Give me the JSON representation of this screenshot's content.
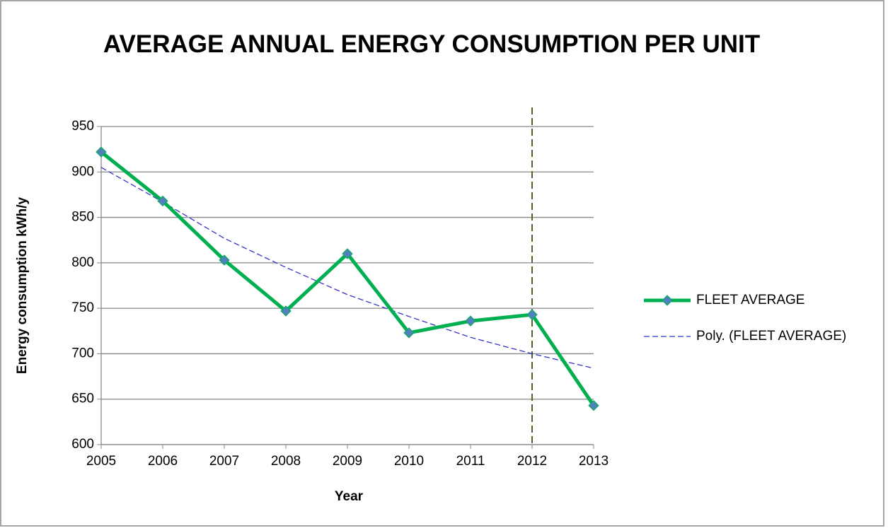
{
  "chart_data": {
    "type": "line",
    "title": "AVERAGE ANNUAL ENERGY CONSUMPTION PER UNIT",
    "x_label": "Year",
    "y_label": "Energy consumption kWh/y",
    "x": [
      2005,
      2006,
      2007,
      2008,
      2009,
      2010,
      2011,
      2012,
      2013
    ],
    "series": [
      {
        "name": "FLEET AVERAGE",
        "color": "#00b050",
        "marker_color": "#4f81bd",
        "values": [
          922,
          868,
          803,
          747,
          810,
          723,
          736,
          743,
          643
        ]
      },
      {
        "name": "Poly. (FLEET AVERAGE)",
        "color": "#3333cc",
        "dashed": true,
        "values": [
          905,
          867,
          827,
          795,
          765,
          741,
          718,
          700,
          684
        ]
      }
    ],
    "vline": {
      "x": 2012,
      "color": "#4f6228"
    },
    "xlim": [
      2005,
      2013
    ],
    "xticks": [
      2005,
      2006,
      2007,
      2008,
      2009,
      2010,
      2011,
      2012,
      2013
    ],
    "ylim": [
      600,
      950
    ],
    "yticks": [
      600,
      650,
      700,
      750,
      800,
      850,
      900,
      950
    ],
    "grid": true,
    "legend": "right"
  }
}
